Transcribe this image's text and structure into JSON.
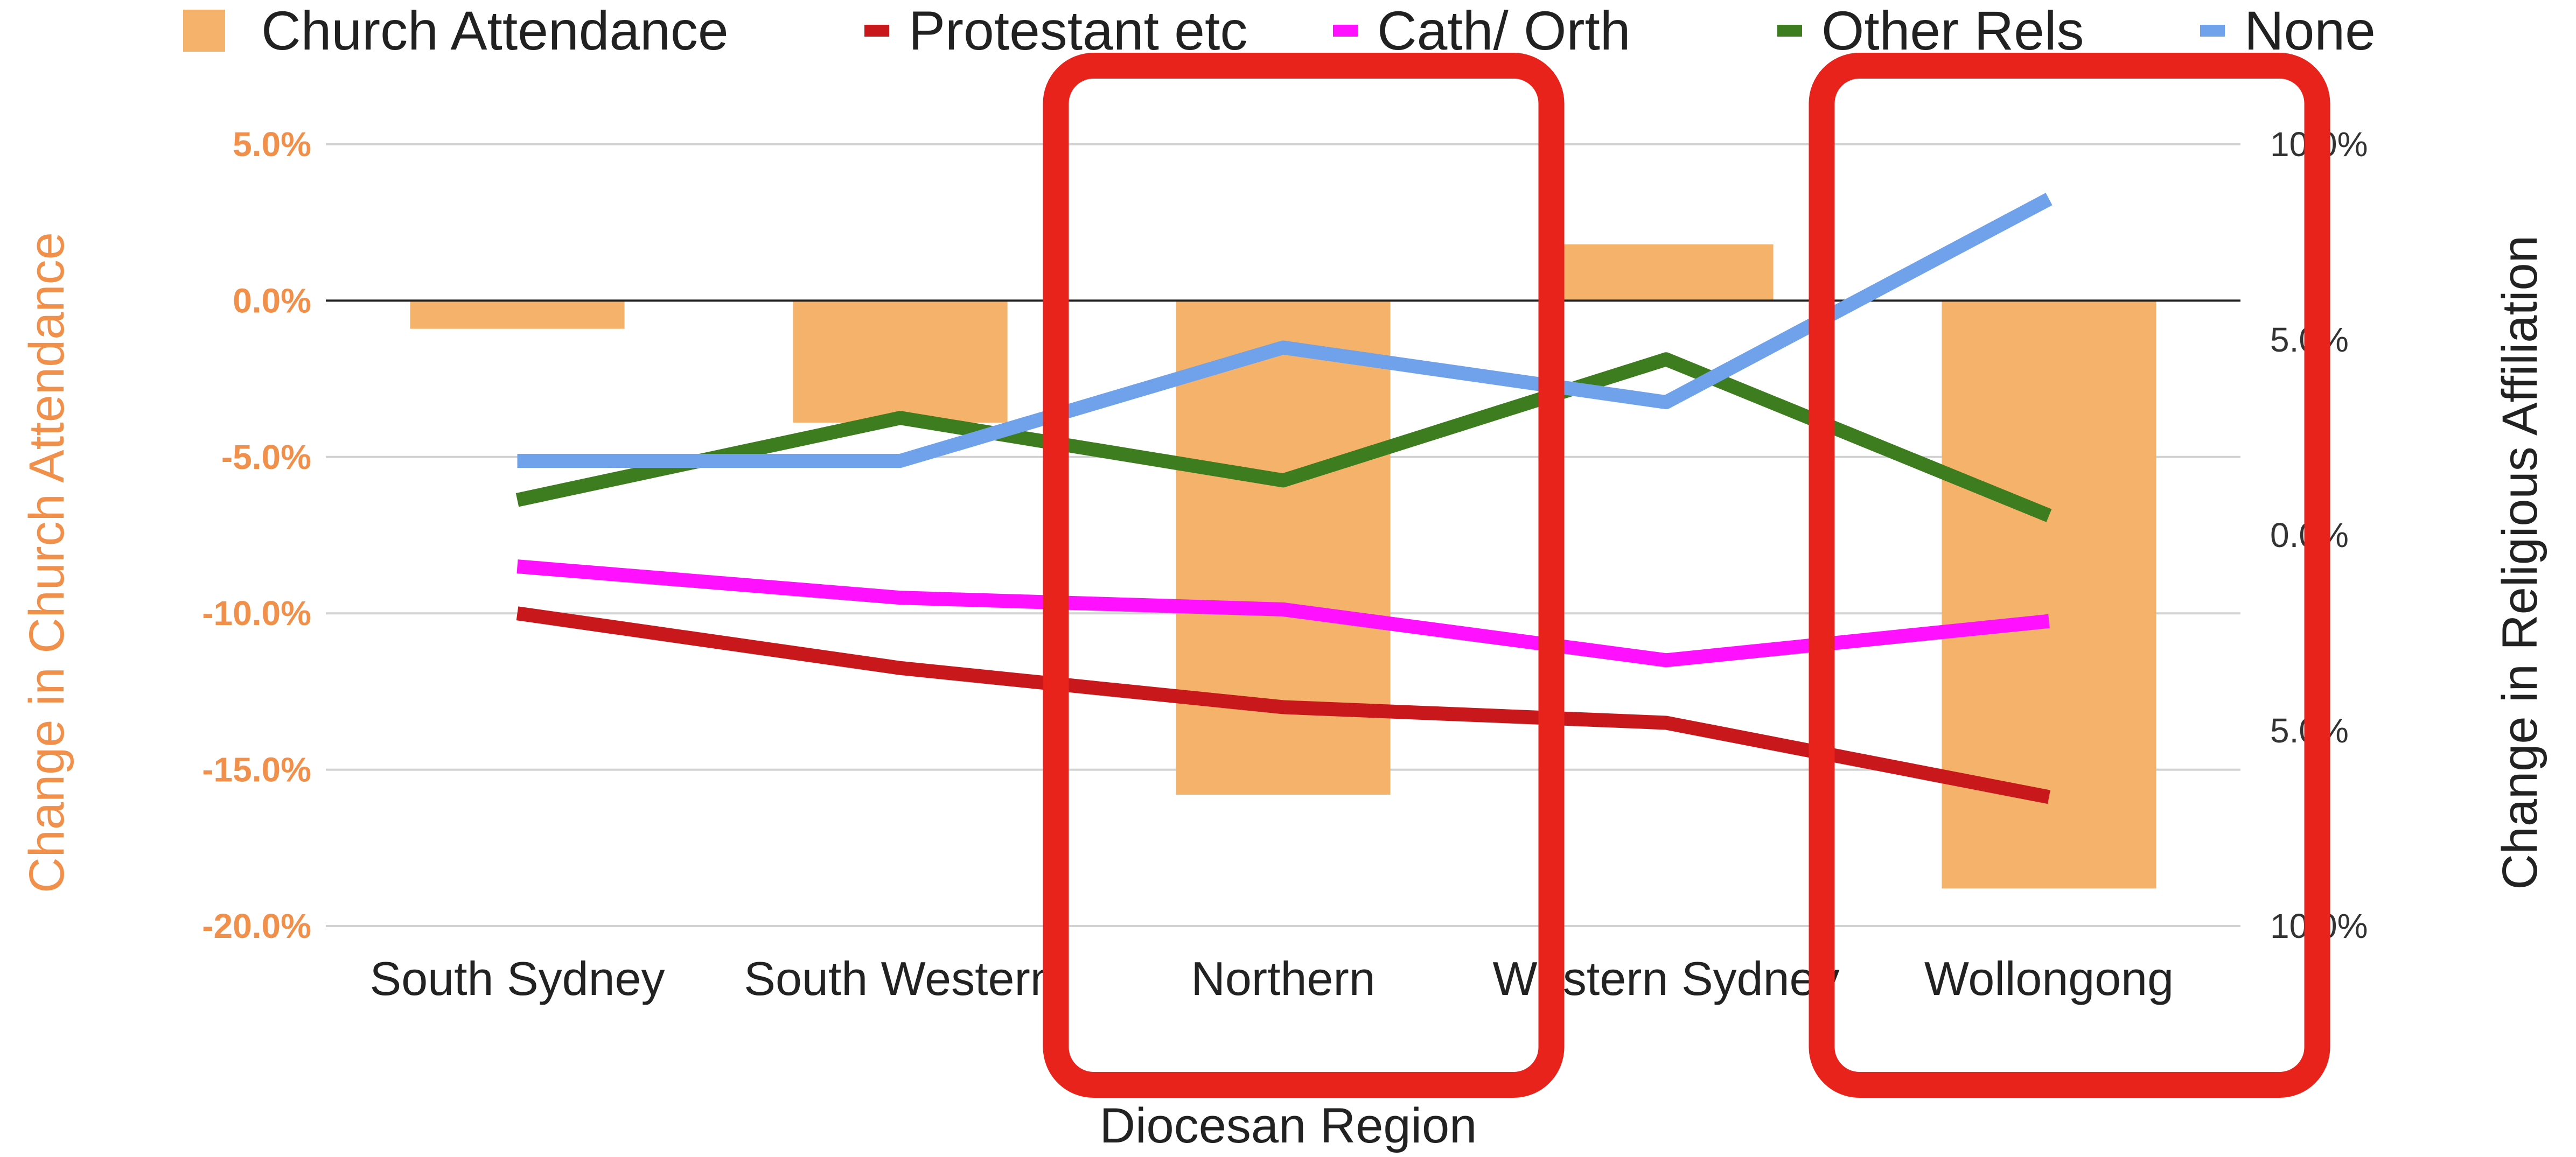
{
  "chart_data": {
    "type": "bar",
    "categories": [
      "South Sydney",
      "South Western",
      "Northern",
      "Western Sydney",
      "Wollongong"
    ],
    "series": [
      {
        "name": "Church Attendance",
        "type": "bar",
        "axis": "left",
        "color": "#f4b26b",
        "values": [
          -0.9,
          -3.9,
          -15.8,
          1.8,
          -18.8
        ]
      },
      {
        "name": "Protestant etc",
        "type": "line",
        "axis": "right",
        "color": "#c8181c",
        "values": [
          -2.0,
          -3.4,
          -4.4,
          -4.8,
          -6.7
        ]
      },
      {
        "name": "Cath/ Orth",
        "type": "line",
        "axis": "right",
        "color": "#ff10ff",
        "values": [
          -0.8,
          -1.6,
          -1.9,
          -3.2,
          -2.2
        ]
      },
      {
        "name": "Other Rels",
        "type": "line",
        "axis": "right",
        "color": "#3e7d1f",
        "values": [
          0.9,
          3.0,
          1.4,
          4.5,
          0.5
        ]
      },
      {
        "name": "None",
        "type": "line",
        "axis": "right",
        "color": "#6fa2ea",
        "values": [
          1.9,
          1.9,
          4.8,
          3.4,
          8.6
        ]
      }
    ],
    "y_left": {
      "label": "Change in Church Attendance",
      "ticks": [
        "5.0%",
        "0.0%",
        "-5.0%",
        "-10.0%",
        "-15.0%",
        "-20.0%"
      ],
      "range": [
        -20,
        5
      ],
      "color": "#f0904b"
    },
    "y_right": {
      "label": "Change in Religious Affiliation",
      "ticks": [
        "10.0%",
        "5.0%",
        "0.0%",
        "5.0%",
        "10.0%"
      ],
      "range": [
        -10,
        10
      ],
      "color": "#333333"
    },
    "xlabel": "Diocesan Region",
    "legend": "top",
    "grid": true,
    "annotations": [
      {
        "kind": "highlight-box",
        "target": "Northern",
        "color": "#e8231c"
      },
      {
        "kind": "highlight-box",
        "target": "Wollongong",
        "color": "#e8231c"
      }
    ]
  }
}
